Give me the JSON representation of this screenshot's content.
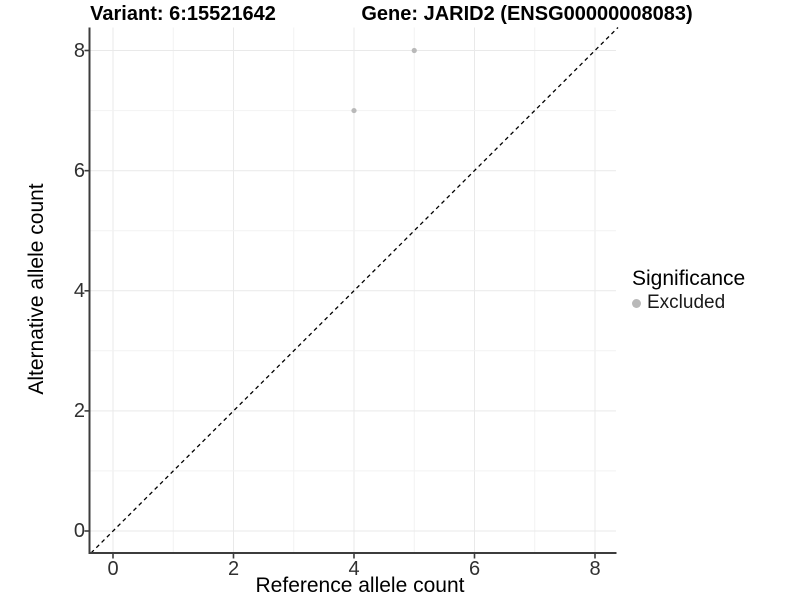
{
  "titles": {
    "left": "Variant: 6:15521642",
    "right": "Gene: JARID2 (ENSG00000008083)"
  },
  "axes": {
    "x": {
      "label": "Reference allele count",
      "ticks": [
        "0",
        "2",
        "4",
        "6",
        "8"
      ]
    },
    "y": {
      "label": "Alternative allele count",
      "ticks": [
        "0",
        "2",
        "4",
        "6",
        "8"
      ]
    }
  },
  "legend": {
    "title": "Significance",
    "items": [
      {
        "label": "Excluded",
        "color": "#b9b9b9",
        "marker": "circle-icon"
      }
    ]
  },
  "chart_data": {
    "type": "scatter",
    "title": "Variant: 6:15521642   |   Gene: JARID2 (ENSG00000008083)",
    "xlabel": "Reference allele count",
    "ylabel": "Alternative allele count",
    "xlim": [
      -0.4,
      8.4
    ],
    "ylim": [
      -0.4,
      8.4
    ],
    "x_ticks": [
      0,
      2,
      4,
      6,
      8
    ],
    "y_ticks": [
      0,
      2,
      4,
      6,
      8
    ],
    "grid": "on",
    "legend_title": "Significance",
    "legend_position": "right",
    "series": [
      {
        "name": "Excluded",
        "color": "#b9b9b9",
        "marker": "circle",
        "points": [
          {
            "x": 4,
            "y": 7
          },
          {
            "x": 5,
            "y": 8
          }
        ]
      }
    ],
    "reference_line": {
      "kind": "identity y=x",
      "style": "dashed",
      "color": "#000000"
    }
  },
  "style_colors": {
    "background": "#ffffff",
    "grid_major": "#e9e9e9",
    "grid_minor": "#f2f2f2",
    "axis_line": "#3c3c3c",
    "point_fill": "#b9b9b9",
    "reference_line": "#000000"
  }
}
